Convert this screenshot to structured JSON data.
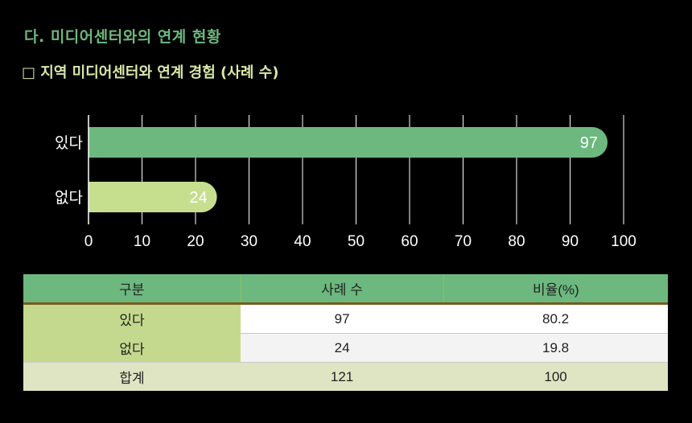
{
  "heading": {
    "section_title": "다. 미디어센터와의 연계 현황",
    "sub_title": "□ 지역 미디어센터와 연계 경험 (사례 수)"
  },
  "colors": {
    "bar_primary": "#6cb87e",
    "bar_secondary": "#c5df8f",
    "title_green": "#6cb87e",
    "subtitle_light": "#d8e8a8"
  },
  "chart_data": {
    "type": "bar",
    "orientation": "horizontal",
    "categories": [
      "있다",
      "없다"
    ],
    "values": [
      97,
      24
    ],
    "xlim": [
      0,
      100
    ],
    "x_ticks": [
      0,
      10,
      20,
      30,
      40,
      50,
      60,
      70,
      80,
      90,
      100
    ],
    "grid": true,
    "legend": "none"
  },
  "table": {
    "headers": [
      "구분",
      "사례 수",
      "비율(%)"
    ],
    "rows": [
      [
        "있다",
        "97",
        "80.2"
      ],
      [
        "없다",
        "24",
        "19.8"
      ],
      [
        "합계",
        "121",
        "100"
      ]
    ]
  }
}
